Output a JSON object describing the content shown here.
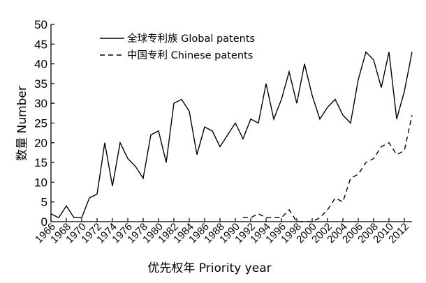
{
  "chart_data": {
    "type": "line",
    "xlabel": "优先权年 Priority year",
    "ylabel": "数量 Number",
    "ylim": [
      0,
      50
    ],
    "yticks": [
      0,
      5,
      10,
      15,
      20,
      25,
      30,
      35,
      40,
      45,
      50
    ],
    "xlim": [
      1966,
      2013
    ],
    "xticks": [
      1966,
      1968,
      1970,
      1972,
      1974,
      1976,
      1978,
      1980,
      1982,
      1984,
      1986,
      1988,
      1990,
      1992,
      1994,
      1996,
      1998,
      2000,
      2002,
      2004,
      2006,
      2008,
      2010,
      2012
    ],
    "grid": false,
    "legend_position": "top-center",
    "series": [
      {
        "name": "全球专利族 Global patents",
        "style": "solid",
        "color": "#000000",
        "points": [
          [
            1966,
            2
          ],
          [
            1967,
            1
          ],
          [
            1968,
            4
          ],
          [
            1969,
            1
          ],
          [
            1970,
            1
          ],
          [
            1971,
            6
          ],
          [
            1972,
            7
          ],
          [
            1973,
            20
          ],
          [
            1974,
            9
          ],
          [
            1975,
            20
          ],
          [
            1976,
            16
          ],
          [
            1977,
            14
          ],
          [
            1978,
            11
          ],
          [
            1979,
            22
          ],
          [
            1980,
            23
          ],
          [
            1981,
            15
          ],
          [
            1982,
            30
          ],
          [
            1983,
            31
          ],
          [
            1984,
            28
          ],
          [
            1985,
            17
          ],
          [
            1986,
            24
          ],
          [
            1987,
            23
          ],
          [
            1988,
            19
          ],
          [
            1989,
            22
          ],
          [
            1990,
            25
          ],
          [
            1991,
            21
          ],
          [
            1992,
            26
          ],
          [
            1993,
            25
          ],
          [
            1994,
            35
          ],
          [
            1995,
            26
          ],
          [
            1996,
            31
          ],
          [
            1997,
            38
          ],
          [
            1998,
            30
          ],
          [
            1999,
            40
          ],
          [
            2000,
            32
          ],
          [
            2001,
            26
          ],
          [
            2002,
            29
          ],
          [
            2003,
            31
          ],
          [
            2004,
            27
          ],
          [
            2005,
            25
          ],
          [
            2006,
            36
          ],
          [
            2007,
            43
          ],
          [
            2008,
            41
          ],
          [
            2009,
            34
          ],
          [
            2010,
            43
          ],
          [
            2011,
            26
          ],
          [
            2012,
            33
          ],
          [
            2013,
            43
          ]
        ]
      },
      {
        "name": "中国专利 Chinese patents",
        "style": "dashed",
        "color": "#000000",
        "points": [
          [
            1991,
            1
          ],
          [
            1992,
            1
          ],
          [
            1993,
            2
          ],
          [
            1994,
            1
          ],
          [
            1995,
            1
          ],
          [
            1996,
            1
          ],
          [
            1997,
            3
          ],
          [
            1998,
            0
          ],
          [
            1999,
            0
          ],
          [
            2000,
            0
          ],
          [
            2001,
            1
          ],
          [
            2002,
            3
          ],
          [
            2003,
            6
          ],
          [
            2004,
            5
          ],
          [
            2005,
            11
          ],
          [
            2006,
            12
          ],
          [
            2007,
            15
          ],
          [
            2008,
            16
          ],
          [
            2009,
            19
          ],
          [
            2010,
            20
          ],
          [
            2011,
            17
          ],
          [
            2012,
            18
          ],
          [
            2013,
            27
          ]
        ]
      }
    ]
  }
}
